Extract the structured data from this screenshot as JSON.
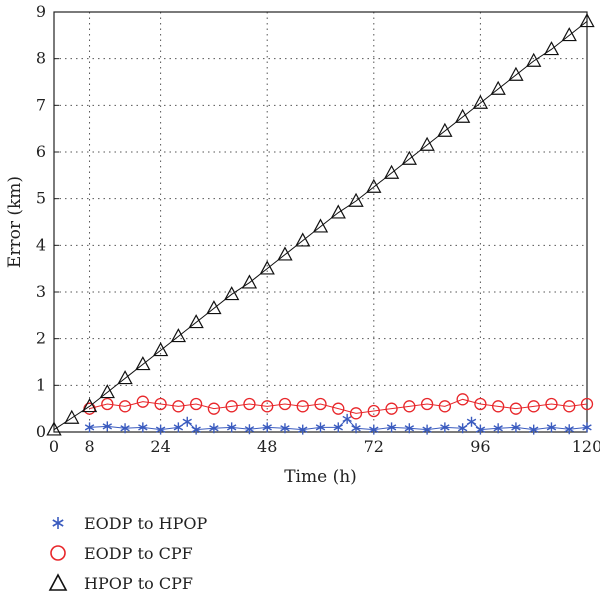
{
  "chart_data": {
    "type": "line",
    "xlabel": "Time (h)",
    "ylabel": "Error (km)",
    "xlim": [
      0,
      120
    ],
    "ylim": [
      0,
      9
    ],
    "xticks": [
      0,
      8,
      24,
      48,
      72,
      96,
      120
    ],
    "yticks": [
      0,
      1,
      2,
      3,
      4,
      5,
      6,
      7,
      8,
      9
    ],
    "grid": true,
    "legend_position": "below",
    "series": [
      {
        "name": "EODP to HPOP",
        "marker": "asterisk",
        "color": "#3a5bbf",
        "x": [
          8,
          12,
          16,
          20,
          24,
          28,
          30,
          32,
          36,
          40,
          44,
          48,
          52,
          56,
          60,
          64,
          66,
          68,
          72,
          76,
          80,
          84,
          88,
          92,
          94,
          96,
          100,
          104,
          108,
          112,
          116,
          120
        ],
        "values": [
          0.1,
          0.12,
          0.08,
          0.1,
          0.05,
          0.1,
          0.22,
          0.05,
          0.08,
          0.1,
          0.06,
          0.1,
          0.08,
          0.05,
          0.1,
          0.1,
          0.28,
          0.08,
          0.05,
          0.1,
          0.08,
          0.05,
          0.1,
          0.08,
          0.22,
          0.05,
          0.08,
          0.1,
          0.05,
          0.1,
          0.06,
          0.1
        ]
      },
      {
        "name": "EODP to CPF",
        "marker": "circle",
        "color": "#e8262a",
        "x": [
          8,
          12,
          16,
          20,
          24,
          28,
          32,
          36,
          40,
          44,
          48,
          52,
          56,
          60,
          64,
          68,
          72,
          76,
          80,
          84,
          88,
          92,
          96,
          100,
          104,
          108,
          112,
          116,
          120
        ],
        "values": [
          0.5,
          0.6,
          0.55,
          0.65,
          0.6,
          0.55,
          0.6,
          0.5,
          0.55,
          0.6,
          0.55,
          0.6,
          0.55,
          0.6,
          0.5,
          0.4,
          0.45,
          0.5,
          0.55,
          0.6,
          0.55,
          0.7,
          0.6,
          0.55,
          0.5,
          0.55,
          0.6,
          0.55,
          0.6
        ]
      },
      {
        "name": "HPOP to CPF",
        "marker": "triangle",
        "color": "#111111",
        "x": [
          0,
          4,
          8,
          12,
          16,
          20,
          24,
          28,
          32,
          36,
          40,
          44,
          48,
          52,
          56,
          60,
          64,
          68,
          72,
          76,
          80,
          84,
          88,
          92,
          96,
          100,
          104,
          108,
          112,
          116,
          120
        ],
        "values": [
          0.05,
          0.3,
          0.55,
          0.85,
          1.15,
          1.45,
          1.75,
          2.05,
          2.35,
          2.65,
          2.95,
          3.2,
          3.5,
          3.8,
          4.1,
          4.4,
          4.7,
          4.95,
          5.25,
          5.55,
          5.85,
          6.15,
          6.45,
          6.75,
          7.05,
          7.35,
          7.65,
          7.95,
          8.2,
          8.5,
          8.8
        ]
      }
    ]
  }
}
